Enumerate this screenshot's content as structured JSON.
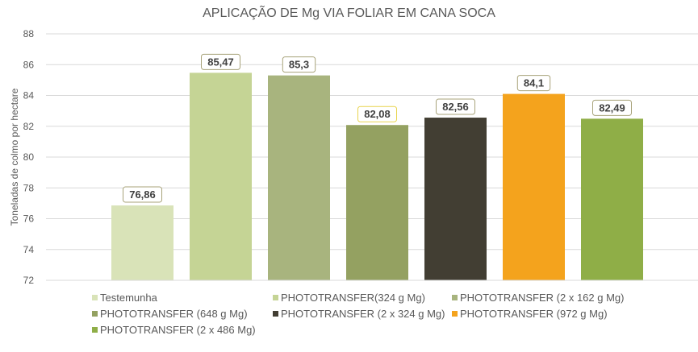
{
  "chart_data": {
    "type": "bar",
    "title": "APLICAÇÃO DE Mg VIA FOLIAR EM CANA SOCA",
    "ylabel": "Toneladas de colmo por hectare",
    "xlabel": "",
    "ylim": [
      72,
      88
    ],
    "yticks": [
      72,
      74,
      76,
      78,
      80,
      82,
      84,
      86,
      88
    ],
    "grid": true,
    "legend_position": "bottom",
    "categories": [
      "Testemunha",
      "PHOTOTRANSFER(324 g Mg)",
      "PHOTOTRANSFER (2 x 162 g Mg)",
      "PHOTOTRANSFER (648 g Mg)",
      "PHOTOTRANSFER (2 x 324 g Mg)",
      "PHOTOTRANSFER (972 g Mg)",
      "PHOTOTRANSFER (2 x 486 Mg)"
    ],
    "values": [
      76.86,
      85.47,
      85.3,
      82.08,
      82.56,
      84.1,
      82.49
    ],
    "data_labels": [
      "76,86",
      "85,47",
      "85,3",
      "82,08",
      "82,56",
      "84,1",
      "82,49"
    ],
    "colors": [
      "#d9e3b8",
      "#c5d495",
      "#a8b47e",
      "#94a161",
      "#423e33",
      "#f4a31d",
      "#8fae47"
    ],
    "label_border_colors": [
      "#a8a37a",
      "#a8a37a",
      "#a8a37a",
      "#e8d44d",
      "#a8a37a",
      "#a8a37a",
      "#a8a37a"
    ]
  }
}
